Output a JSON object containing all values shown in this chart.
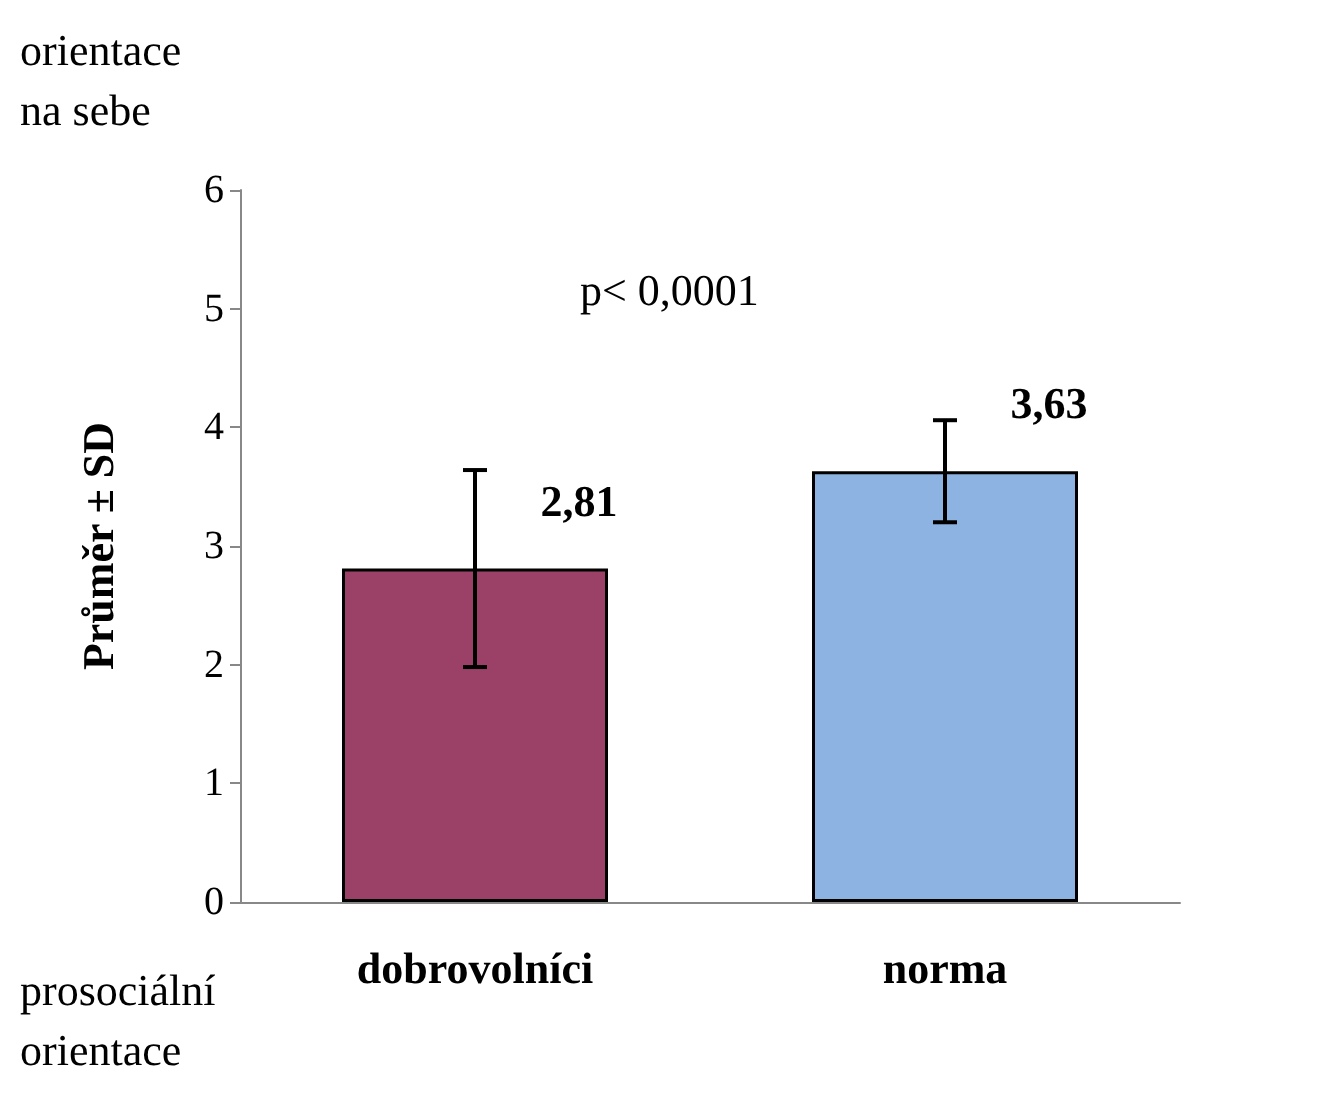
{
  "chart_data": {
    "type": "bar",
    "ylabel": "Průměr ± SD",
    "categories": [
      "dobrovolníci",
      "norma"
    ],
    "values": [
      2.81,
      3.63
    ],
    "colors": [
      "#9b4067",
      "#8db3e2"
    ],
    "errors": [
      0.83,
      0.43
    ],
    "value_labels": [
      "2,81",
      "3,63"
    ],
    "ylim": [
      0,
      6
    ],
    "yticks": [
      0,
      1,
      2,
      3,
      4,
      5,
      6
    ],
    "grid": false,
    "annotations": [
      "orientace\nna sebe",
      "p< 0,0001",
      "prosociální\norientace"
    ]
  }
}
